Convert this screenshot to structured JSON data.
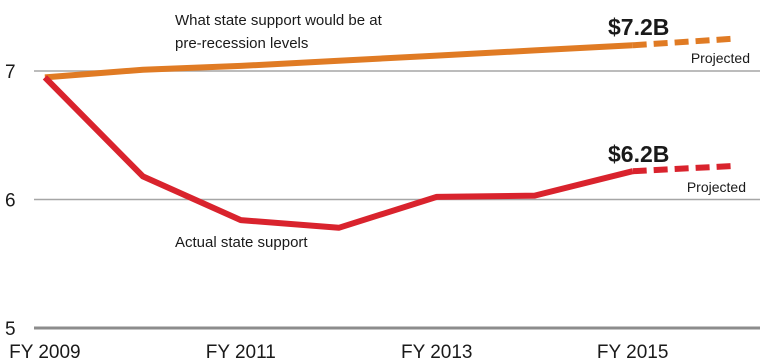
{
  "colors": {
    "pre_recession": "#e07b24",
    "actual": "#d9232d",
    "grid": "#a6a6a6",
    "axis": "#8c8c8c"
  },
  "chart_data": {
    "type": "line",
    "title": "",
    "xlabel": "",
    "ylabel": "",
    "x": [
      2009,
      2010,
      2011,
      2012,
      2013,
      2014,
      2015,
      2016
    ],
    "x_tick_labels": [
      "FY 2009",
      "FY 2011",
      "FY 2013",
      "FY 2015"
    ],
    "x_tick_values": [
      2009,
      2011,
      2013,
      2015
    ],
    "xlim": [
      2008.95,
      2016.3
    ],
    "ylim": [
      5,
      7.2
    ],
    "y_ticks": [
      5,
      6,
      7
    ],
    "grid": "horizontal",
    "series": [
      {
        "key": "pre",
        "color_key": "pre_recession",
        "label": "What state support would be at pre-recession levels",
        "label_lines": [
          "What state support would be at",
          "pre-recession levels"
        ],
        "end_label": "$7.2B",
        "projected_label": "Projected",
        "values": [
          6.95,
          7.01,
          7.04,
          7.08,
          7.12,
          7.16,
          7.2,
          7.25
        ],
        "projected_from": 2015
      },
      {
        "key": "actual",
        "color_key": "actual",
        "label": "Actual state support",
        "end_label": "$6.2B",
        "projected_label": "Projected",
        "values": [
          6.95,
          6.18,
          5.84,
          5.78,
          6.02,
          6.03,
          6.22,
          6.26
        ],
        "projected_from": 2015
      }
    ]
  }
}
